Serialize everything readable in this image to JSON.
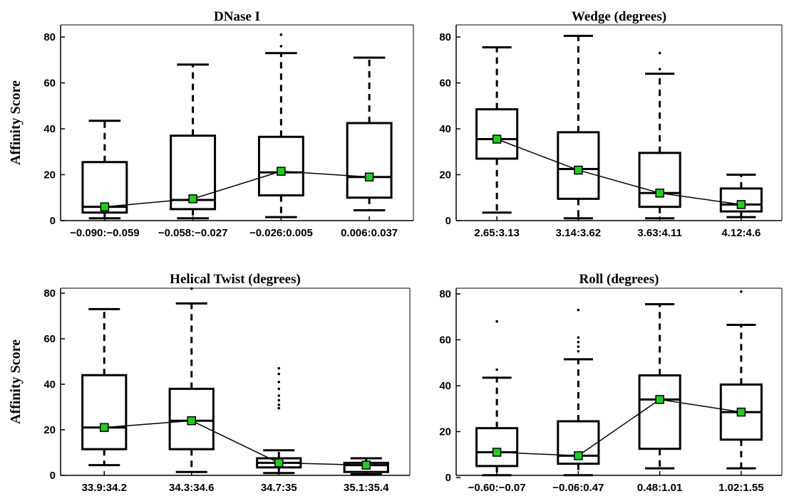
{
  "chart_data": [
    {
      "type": "box",
      "title": "DNase I",
      "ylabel": "Affinity Score",
      "ylim": [
        0,
        80
      ],
      "yticks": [
        0,
        20,
        40,
        60,
        80
      ],
      "categories": [
        "−0.090:−0.059",
        "−0.058:−0.027",
        "−0.026:0.005",
        "0.006:0.037"
      ],
      "boxes": [
        {
          "whisker_low": 1,
          "q1": 3.5,
          "median": 6,
          "q3": 25.5,
          "whisker_high": 43.5,
          "outliers": []
        },
        {
          "whisker_low": 1,
          "q1": 5,
          "median": 9,
          "q3": 37,
          "whisker_high": 68,
          "outliers": []
        },
        {
          "whisker_low": 1.5,
          "q1": 11,
          "median": 21,
          "q3": 36.5,
          "whisker_high": 73,
          "outliers": [
            76,
            81
          ]
        },
        {
          "whisker_low": 4.5,
          "q1": 10,
          "median": 19,
          "q3": 42.5,
          "whisker_high": 71,
          "outliers": []
        }
      ],
      "mean_line": [
        6,
        9.5,
        21.5,
        19
      ]
    },
    {
      "type": "box",
      "title": "Wedge (degrees)",
      "ylabel": "",
      "ylim": [
        0,
        80
      ],
      "yticks": [
        0,
        20,
        40,
        60,
        80
      ],
      "categories": [
        "2.65:3.13",
        "3.14:3.62",
        "3.63:4.11",
        "4.12:4.6"
      ],
      "boxes": [
        {
          "whisker_low": 3.5,
          "q1": 27,
          "median": 35.5,
          "q3": 48.5,
          "whisker_high": 75.5,
          "outliers": []
        },
        {
          "whisker_low": 1,
          "q1": 9.5,
          "median": 22.5,
          "q3": 38.5,
          "whisker_high": 80.5,
          "outliers": []
        },
        {
          "whisker_low": 1,
          "q1": 6,
          "median": 12,
          "q3": 29.5,
          "whisker_high": 64,
          "outliers": [
            66,
            73
          ]
        },
        {
          "whisker_low": 1.5,
          "q1": 4,
          "median": 7,
          "q3": 14,
          "whisker_high": 20,
          "outliers": []
        }
      ],
      "mean_line": [
        35.5,
        22,
        12,
        7
      ]
    },
    {
      "type": "box",
      "title": "Helical Twist (degrees)",
      "ylabel": "Affinity Score",
      "ylim": [
        0,
        80
      ],
      "yticks": [
        0,
        20,
        40,
        60,
        80
      ],
      "categories": [
        "33.9:34.2",
        "34.3:34.6",
        "34.7:35",
        "35.1:35.4"
      ],
      "boxes": [
        {
          "whisker_low": 4.5,
          "q1": 11.5,
          "median": 21,
          "q3": 44,
          "whisker_high": 73,
          "outliers": []
        },
        {
          "whisker_low": 1.5,
          "q1": 11.5,
          "median": 24,
          "q3": 38,
          "whisker_high": 75.5,
          "outliers": [
            82
          ]
        },
        {
          "whisker_low": 1,
          "q1": 3.5,
          "median": 5.5,
          "q3": 7.5,
          "whisker_high": 11,
          "outliers": [
            29.5,
            31,
            33,
            35,
            38,
            41,
            44.5,
            47
          ]
        },
        {
          "whisker_low": 0.5,
          "q1": 1.5,
          "median": 4.5,
          "q3": 5.5,
          "whisker_high": 7.5,
          "outliers": []
        }
      ],
      "mean_line": [
        21,
        24,
        5.5,
        4.5
      ]
    },
    {
      "type": "box",
      "title": "Roll (degrees)",
      "ylabel": "",
      "ylim": [
        0,
        80
      ],
      "yticks": [
        0,
        20,
        40,
        60,
        80
      ],
      "categories": [
        "−0.60:−0.07",
        "−0.06:0.47",
        "0.48:1.01",
        "1.02:1.55"
      ],
      "boxes": [
        {
          "whisker_low": 1,
          "q1": 5,
          "median": 11,
          "q3": 21.5,
          "whisker_high": 43.5,
          "outliers": [
            47,
            68
          ]
        },
        {
          "whisker_low": 1,
          "q1": 6,
          "median": 9.5,
          "q3": 24.5,
          "whisker_high": 51.5,
          "outliers": [
            55,
            57,
            59,
            61,
            73
          ]
        },
        {
          "whisker_low": 4,
          "q1": 12.5,
          "median": 34,
          "q3": 44.5,
          "whisker_high": 75.5,
          "outliers": []
        },
        {
          "whisker_low": 4,
          "q1": 16.5,
          "median": 28.5,
          "q3": 40.5,
          "whisker_high": 66.5,
          "outliers": [
            81
          ]
        }
      ],
      "mean_line": [
        11,
        9.5,
        34,
        28.5
      ]
    }
  ],
  "colors": {
    "axis": "#000000",
    "box": "#000000",
    "mean_marker": "#22cc22",
    "mean_line": "#000000"
  }
}
